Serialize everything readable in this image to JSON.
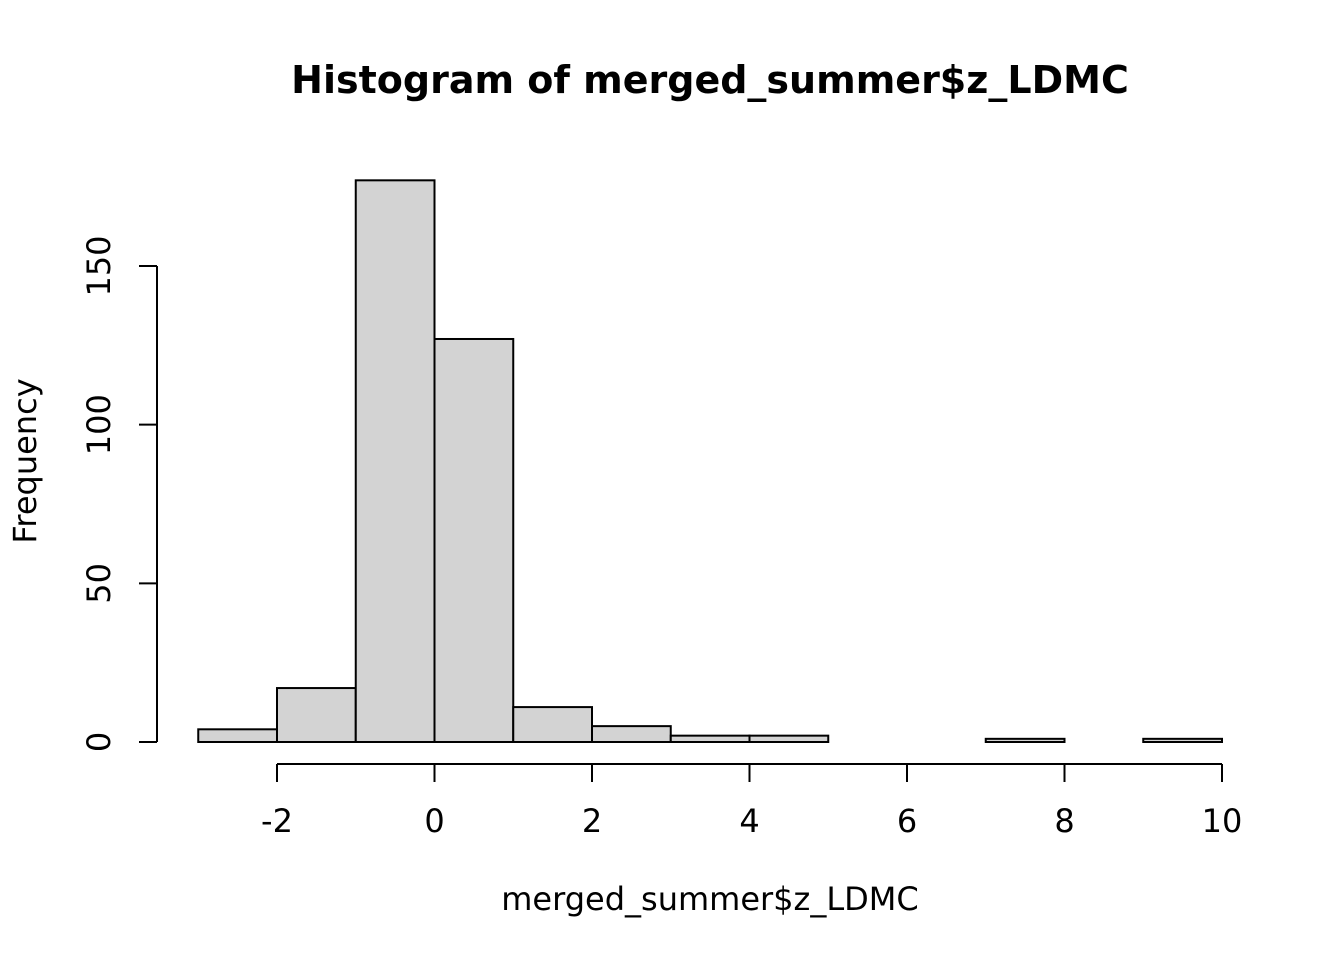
{
  "chart_data": {
    "type": "bar",
    "title": "Histogram of merged_summer$z_LDMC",
    "xlabel": "merged_summer$z_LDMC",
    "ylabel": "Frequency",
    "bins": [
      {
        "x0": -3,
        "x1": -2,
        "count": 4
      },
      {
        "x0": -2,
        "x1": -1,
        "count": 17
      },
      {
        "x0": -1,
        "x1": 0,
        "count": 177
      },
      {
        "x0": 0,
        "x1": 1,
        "count": 127
      },
      {
        "x0": 1,
        "x1": 2,
        "count": 11
      },
      {
        "x0": 2,
        "x1": 3,
        "count": 5
      },
      {
        "x0": 3,
        "x1": 4,
        "count": 2
      },
      {
        "x0": 4,
        "x1": 5,
        "count": 2
      },
      {
        "x0": 5,
        "x1": 6,
        "count": 0
      },
      {
        "x0": 6,
        "x1": 7,
        "count": 0
      },
      {
        "x0": 7,
        "x1": 8,
        "count": 1
      },
      {
        "x0": 8,
        "x1": 9,
        "count": 0
      },
      {
        "x0": 9,
        "x1": 10,
        "count": 1
      }
    ],
    "xlim": [
      -3,
      10
    ],
    "ylim": [
      0,
      177
    ],
    "x_ticks": [
      -2,
      0,
      2,
      4,
      6,
      8,
      10
    ],
    "x_tick_labels": [
      "-2",
      "0",
      "2",
      "4",
      "6",
      "8",
      "10"
    ],
    "y_ticks": [
      0,
      50,
      100,
      150
    ],
    "y_tick_labels": [
      "0",
      "50",
      "100",
      "150"
    ],
    "grid": false,
    "legend": "none",
    "colors": {
      "bar_fill": "#d3d3d3",
      "bar_stroke": "#000000"
    }
  }
}
